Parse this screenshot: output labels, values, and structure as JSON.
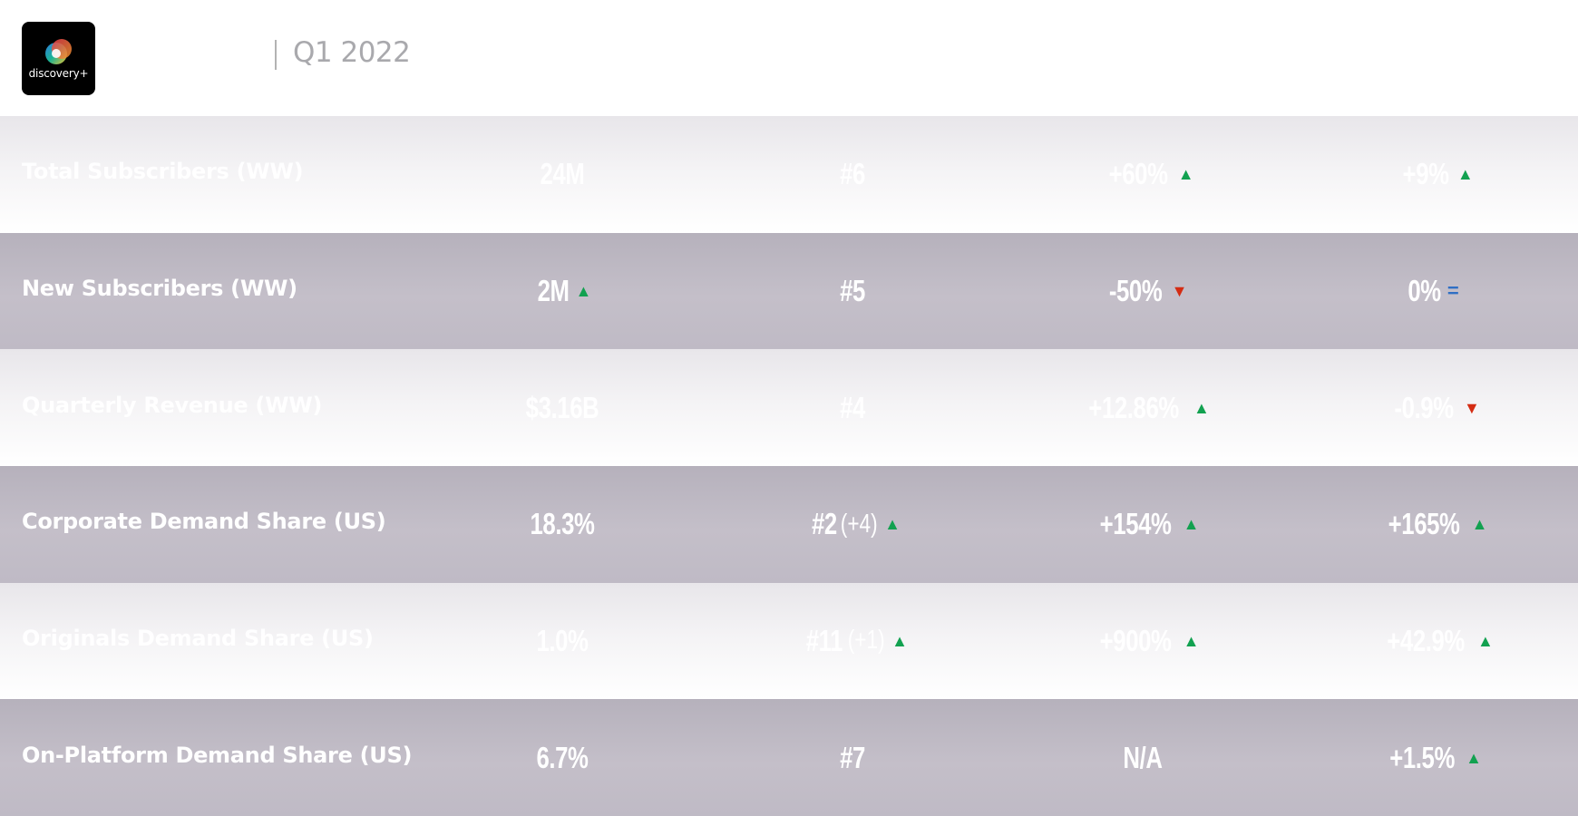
{
  "header": {
    "brand": "discovery+",
    "period": "Q1 2022",
    "colors": {
      "logo_bg": "#000000",
      "up": "#12a150",
      "down": "#d42c13",
      "flat": "#2f6fc4"
    }
  },
  "rows": [
    {
      "metric": "Total Subscribers (WW)",
      "value": "24M",
      "value_trend": "",
      "rank": "#6",
      "rank_delta": "",
      "rank_trend": "",
      "change1": "+60%",
      "change1_trend": "up",
      "change2": "+9%",
      "change2_trend": "up"
    },
    {
      "metric": "New Subscribers (WW)",
      "value": "2M",
      "value_trend": "up",
      "rank": "#5",
      "rank_delta": "",
      "rank_trend": "",
      "change1": "-50%",
      "change1_trend": "down",
      "change2": "0%",
      "change2_trend": "flat"
    },
    {
      "metric": "Quarterly Revenue (WW)",
      "value": "$3.16B",
      "value_trend": "",
      "rank": "#4",
      "rank_delta": "",
      "rank_trend": "",
      "change1": "+12.86%",
      "change1_trend": "up",
      "change2": "-0.9%",
      "change2_trend": "down"
    },
    {
      "metric": "Corporate Demand Share (US)",
      "value": "18.3%",
      "value_trend": "",
      "rank": "#2",
      "rank_delta": "(+4)",
      "rank_trend": "up",
      "change1": "+154%",
      "change1_trend": "up",
      "change2": "+165%",
      "change2_trend": "up"
    },
    {
      "metric": "Originals Demand Share (US)",
      "value": "1.0%",
      "value_trend": "",
      "rank": "#11",
      "rank_delta": "(+1)",
      "rank_trend": "up",
      "change1": "+900%",
      "change1_trend": "up",
      "change2": "+42.9%",
      "change2_trend": "up"
    },
    {
      "metric": "On-Platform Demand Share (US)",
      "value": "6.7%",
      "value_trend": "",
      "rank": "#7",
      "rank_delta": "",
      "rank_trend": "",
      "change1": "N/A",
      "change1_trend": "",
      "change2": "+1.5%",
      "change2_trend": "up"
    }
  ]
}
